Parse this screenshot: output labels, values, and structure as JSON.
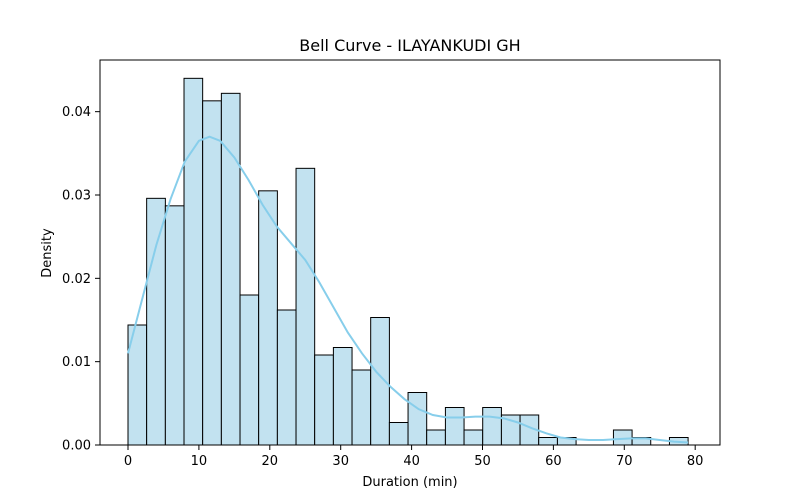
{
  "chart_data": {
    "type": "bar",
    "title": "Bell Curve - ILAYANKUDI GH",
    "xlabel": "Duration (min)",
    "ylabel": "Density",
    "xlim": [
      -3.95,
      83.5
    ],
    "ylim": [
      0,
      0.0462
    ],
    "x_ticks": [
      0,
      10,
      20,
      30,
      40,
      50,
      60,
      70,
      80
    ],
    "y_ticks": [
      0.0,
      0.01,
      0.02,
      0.03,
      0.04
    ],
    "x_tick_labels": [
      "0",
      "10",
      "20",
      "30",
      "40",
      "50",
      "60",
      "70",
      "80"
    ],
    "y_tick_labels": [
      "0.00",
      "0.01",
      "0.02",
      "0.03",
      "0.04"
    ],
    "grid": false,
    "legend": "none",
    "histogram": {
      "bin_edges": [
        0,
        2.63,
        5.27,
        7.9,
        10.53,
        13.17,
        15.8,
        18.43,
        21.07,
        23.7,
        26.33,
        28.97,
        31.6,
        34.23,
        36.87,
        39.5,
        42.13,
        44.77,
        47.4,
        50.03,
        52.67,
        55.3,
        57.93,
        60.57,
        63.2,
        65.83,
        68.47,
        71.1,
        73.73,
        76.37,
        79.0
      ],
      "density": [
        0.0144,
        0.0296,
        0.0287,
        0.044,
        0.0413,
        0.0422,
        0.018,
        0.0305,
        0.0162,
        0.0332,
        0.0108,
        0.0117,
        0.009,
        0.0153,
        0.0027,
        0.0063,
        0.0018,
        0.0045,
        0.0018,
        0.0045,
        0.0036,
        0.0036,
        0.0009,
        0.0009,
        0,
        0,
        0.0018,
        0.0009,
        0,
        0.0009
      ]
    },
    "kde_curve": {
      "x": [
        0,
        2,
        4,
        6,
        8,
        10,
        11.5,
        13,
        15,
        17,
        19,
        21,
        23,
        25,
        27,
        29,
        31,
        33,
        35,
        37,
        39,
        41,
        43,
        45,
        47,
        49,
        51,
        53,
        55,
        57,
        59,
        61,
        63,
        65,
        67,
        69,
        71,
        73,
        75,
        77,
        79
      ],
      "y": [
        0.011,
        0.0175,
        0.024,
        0.0295,
        0.034,
        0.0365,
        0.037,
        0.0365,
        0.0345,
        0.0318,
        0.0288,
        0.0262,
        0.0242,
        0.0222,
        0.0195,
        0.0165,
        0.0135,
        0.011,
        0.0088,
        0.007,
        0.0055,
        0.0043,
        0.0036,
        0.0033,
        0.0033,
        0.0034,
        0.0034,
        0.0032,
        0.0027,
        0.002,
        0.0014,
        0.0009,
        0.0007,
        0.0006,
        0.0006,
        0.0007,
        0.0008,
        0.0008,
        0.0006,
        0.0004,
        0.0003
      ]
    },
    "colors": {
      "bar_fill": "#c2e2f0",
      "bar_edge": "#000000",
      "kde_line": "#87ceeb",
      "axes": "#000000"
    }
  }
}
